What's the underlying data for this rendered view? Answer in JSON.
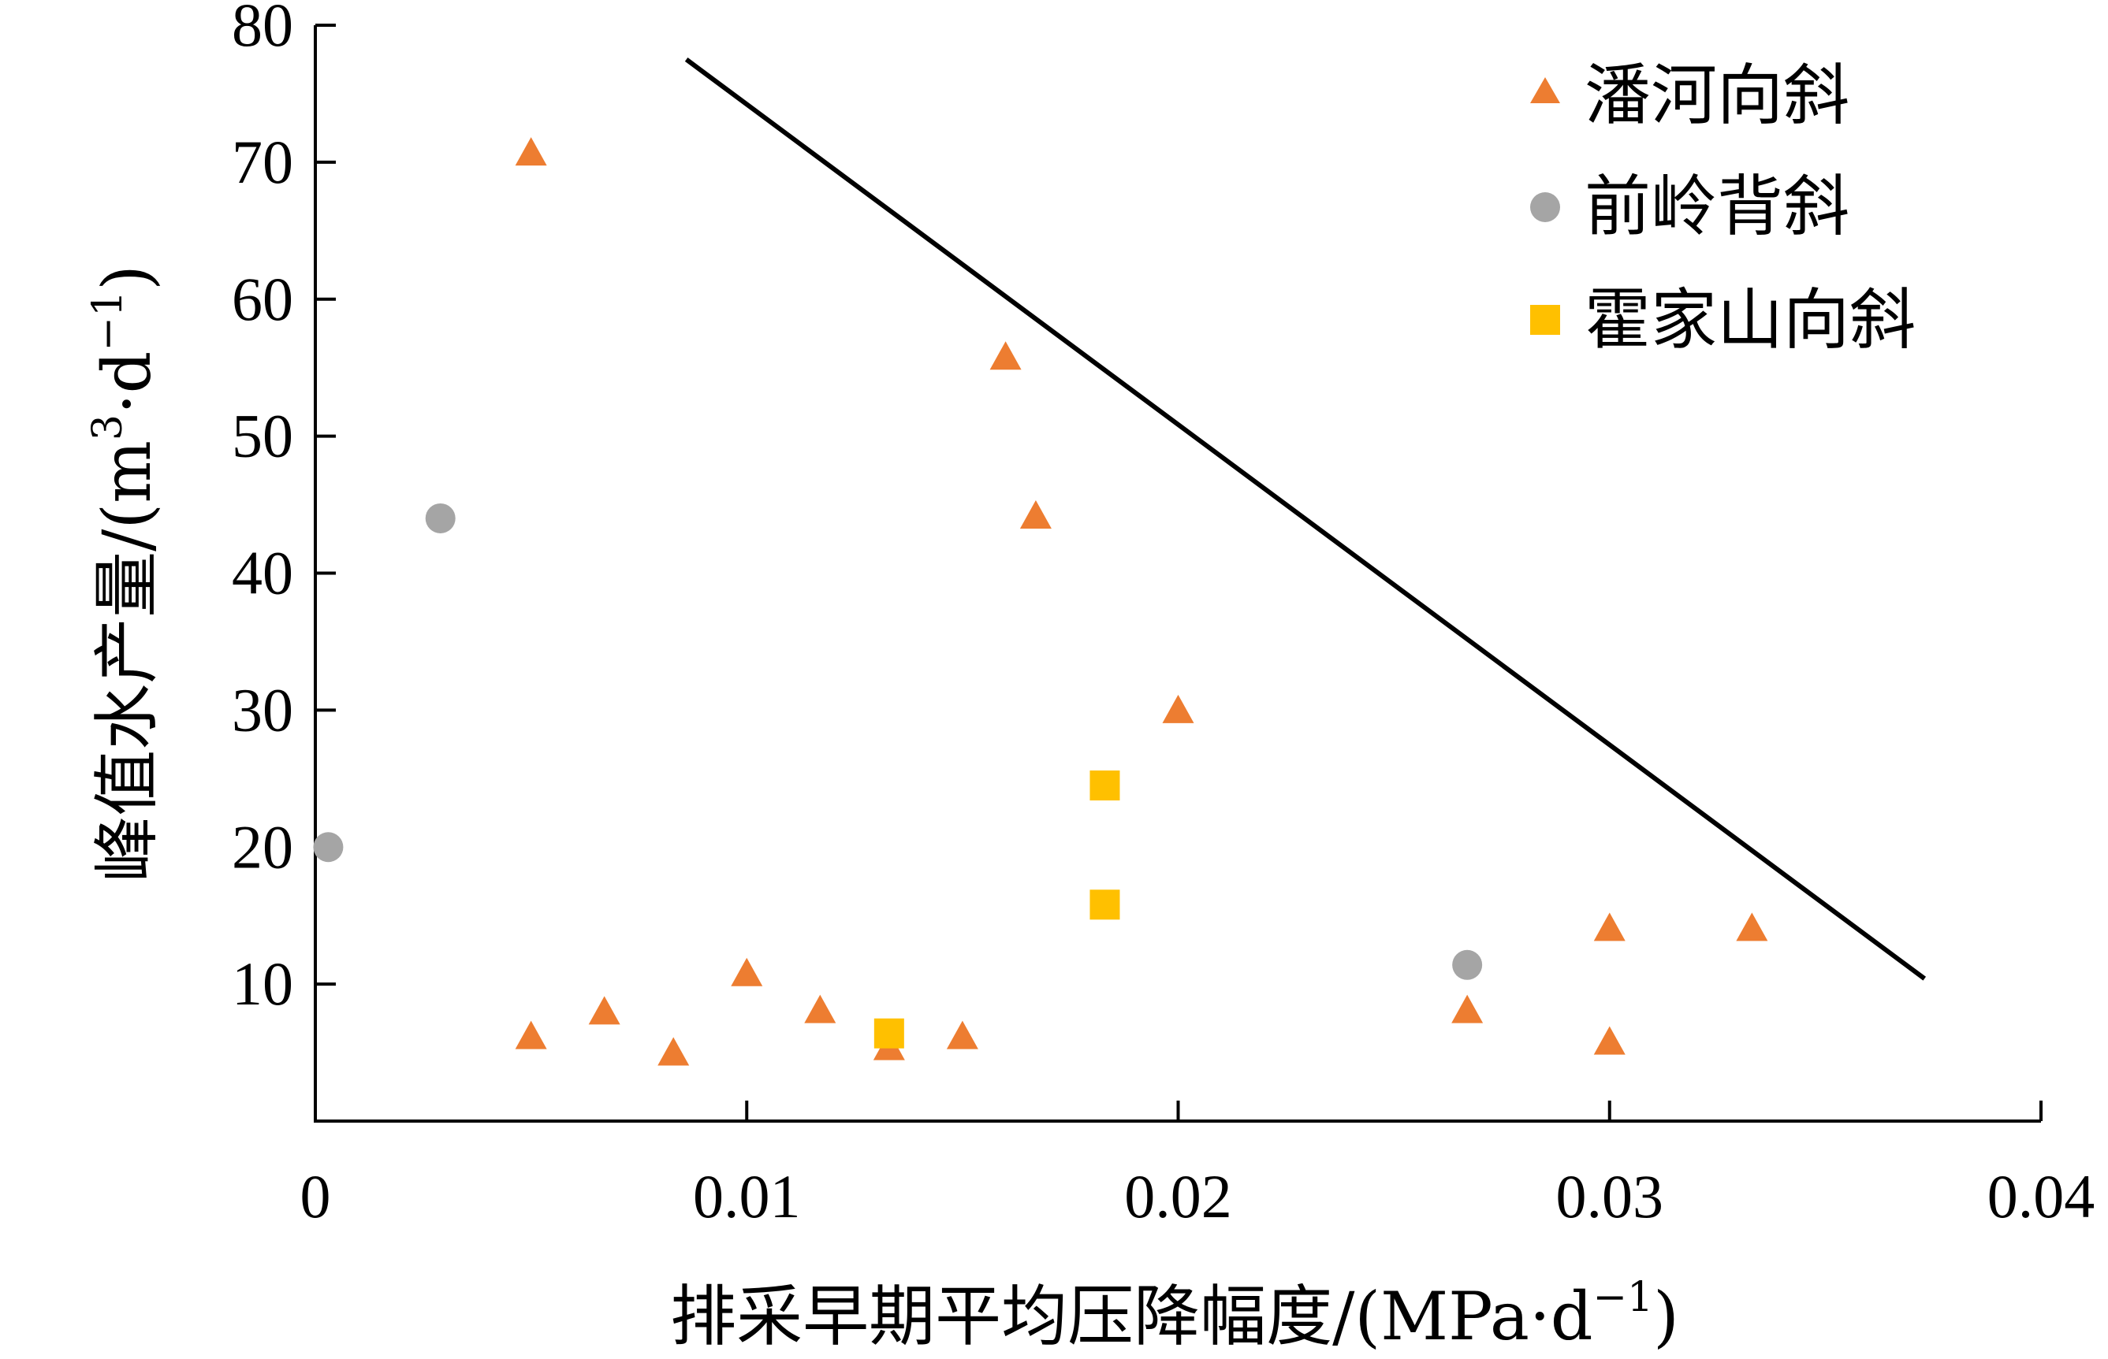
{
  "chart_data": {
    "type": "scatter",
    "xlabel": "排采早期平均压降幅度/(MPa·d",
    "xlabel_sup": "−1",
    "xlabel_end": ")",
    "ylabel": "峰值水产量/(m",
    "ylabel_sup": "3",
    "ylabel_mid": "·d",
    "ylabel_sup2": "−1",
    "ylabel_end": ")",
    "xlim": [
      0,
      0.04
    ],
    "ylim": [
      0,
      80
    ],
    "xticks": [
      0,
      0.01,
      0.02,
      0.03,
      0.04
    ],
    "xtick_labels": [
      "0",
      "0.01",
      "0.02",
      "0.03",
      "0.04"
    ],
    "yticks": [
      10,
      20,
      30,
      40,
      50,
      60,
      70,
      80
    ],
    "ytick_labels": [
      "10",
      "20",
      "30",
      "40",
      "50",
      "60",
      "70",
      "80"
    ],
    "grid": false,
    "legend_position": "top-right",
    "series": [
      {
        "name": "潘河向斜",
        "marker": "triangle",
        "color": "#ED7D31",
        "points": [
          [
            0.005,
            70.5
          ],
          [
            0.005,
            6.0
          ],
          [
            0.0067,
            7.8
          ],
          [
            0.0083,
            4.8
          ],
          [
            0.01,
            10.6
          ],
          [
            0.0117,
            7.9
          ],
          [
            0.0133,
            5.2
          ],
          [
            0.015,
            6.0
          ],
          [
            0.016,
            55.6
          ],
          [
            0.0167,
            44.0
          ],
          [
            0.02,
            29.8
          ],
          [
            0.0267,
            7.9
          ],
          [
            0.03,
            13.9
          ],
          [
            0.03,
            5.6
          ],
          [
            0.0333,
            13.9
          ]
        ]
      },
      {
        "name": "前岭背斜",
        "marker": "circle",
        "color": "#A5A5A5",
        "points": [
          [
            0.0003,
            20.0
          ],
          [
            0.0029,
            44.0
          ],
          [
            0.0267,
            11.4
          ]
        ]
      },
      {
        "name": "霍家山向斜",
        "marker": "square",
        "color": "#FFC000",
        "points": [
          [
            0.0133,
            6.4
          ],
          [
            0.0183,
            24.5
          ],
          [
            0.0183,
            15.8
          ]
        ]
      }
    ],
    "lines": [
      {
        "type": "boundary",
        "color": "#000000",
        "points": [
          [
            0.0086,
            77.5
          ],
          [
            0.0373,
            10.4
          ]
        ]
      }
    ]
  }
}
